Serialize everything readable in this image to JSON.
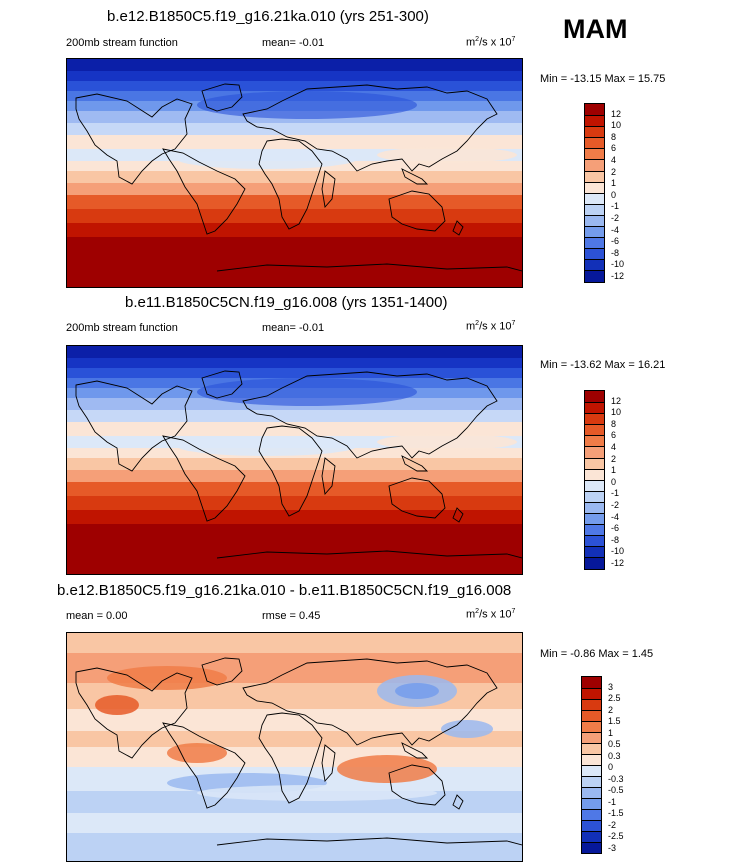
{
  "season": "MAM",
  "panels": [
    {
      "title": "b.e12.B1850C5.f19_g16.21ka.010 (yrs 251-300)",
      "left_label": "200mb stream function",
      "mid_label": "mean=  -0.01",
      "units": "m²/s x 10⁷",
      "minmax": "Min = -13.15 Max =  15.75",
      "levels": [
        "12",
        "10",
        "8",
        "6",
        "4",
        "2",
        "1",
        "0",
        "-1",
        "-2",
        "-4",
        "-6",
        "-8",
        "-10",
        "-12"
      ],
      "colors": [
        "#9e0000",
        "#c01400",
        "#d83a10",
        "#e65a28",
        "#f07c48",
        "#f59f78",
        "#f9c6a4",
        "#fbe5d6",
        "#dce8f8",
        "#bcd2f4",
        "#9ab8f0",
        "#749cec",
        "#4f78e6",
        "#2c52d6",
        "#1230b8",
        "#06189a"
      ],
      "map_data": {
        "type": "filled_contour",
        "projection": "cylindrical_equidistant",
        "region": "global",
        "field_range": [
          -13.15,
          15.75
        ]
      }
    },
    {
      "title": "b.e11.B1850C5CN.f19_g16.008 (yrs 1351-1400)",
      "left_label": "200mb stream function",
      "mid_label": "mean=  -0.01",
      "units": "m²/s x 10⁷",
      "minmax": "Min = -13.62 Max =  16.21",
      "levels": [
        "12",
        "10",
        "8",
        "6",
        "4",
        "2",
        "1",
        "0",
        "-1",
        "-2",
        "-4",
        "-6",
        "-8",
        "-10",
        "-12"
      ],
      "colors": [
        "#9e0000",
        "#c01400",
        "#d83a10",
        "#e65a28",
        "#f07c48",
        "#f59f78",
        "#f9c6a4",
        "#fbe5d6",
        "#dce8f8",
        "#bcd2f4",
        "#9ab8f0",
        "#749cec",
        "#4f78e6",
        "#2c52d6",
        "#1230b8",
        "#06189a"
      ],
      "map_data": {
        "type": "filled_contour",
        "projection": "cylindrical_equidistant",
        "region": "global",
        "field_range": [
          -13.62,
          16.21
        ]
      }
    },
    {
      "title": "b.e12.B1850C5.f19_g16.21ka.010 - b.e11.B1850C5CN.f19_g16.008",
      "left_label": "mean =   0.00",
      "mid_label": "rmse =   0.45",
      "units": "m²/s x 10⁷",
      "minmax": "Min =  -0.86 Max =   1.45",
      "levels": [
        "3",
        "2.5",
        "2",
        "1.5",
        "1",
        "0.5",
        "0.3",
        "0",
        "-0.3",
        "-0.5",
        "-1",
        "-1.5",
        "-2",
        "-2.5",
        "-3"
      ],
      "colors": [
        "#9e0000",
        "#c01400",
        "#d83a10",
        "#e65a28",
        "#f07c48",
        "#f59f78",
        "#f9c6a4",
        "#fbe5d6",
        "#dce8f8",
        "#bcd2f4",
        "#9ab8f0",
        "#749cec",
        "#4f78e6",
        "#2c52d6",
        "#1230b8",
        "#06189a"
      ],
      "map_data": {
        "type": "filled_contour",
        "projection": "cylindrical_equidistant",
        "region": "global",
        "field_range": [
          -0.86,
          1.45
        ]
      }
    }
  ]
}
